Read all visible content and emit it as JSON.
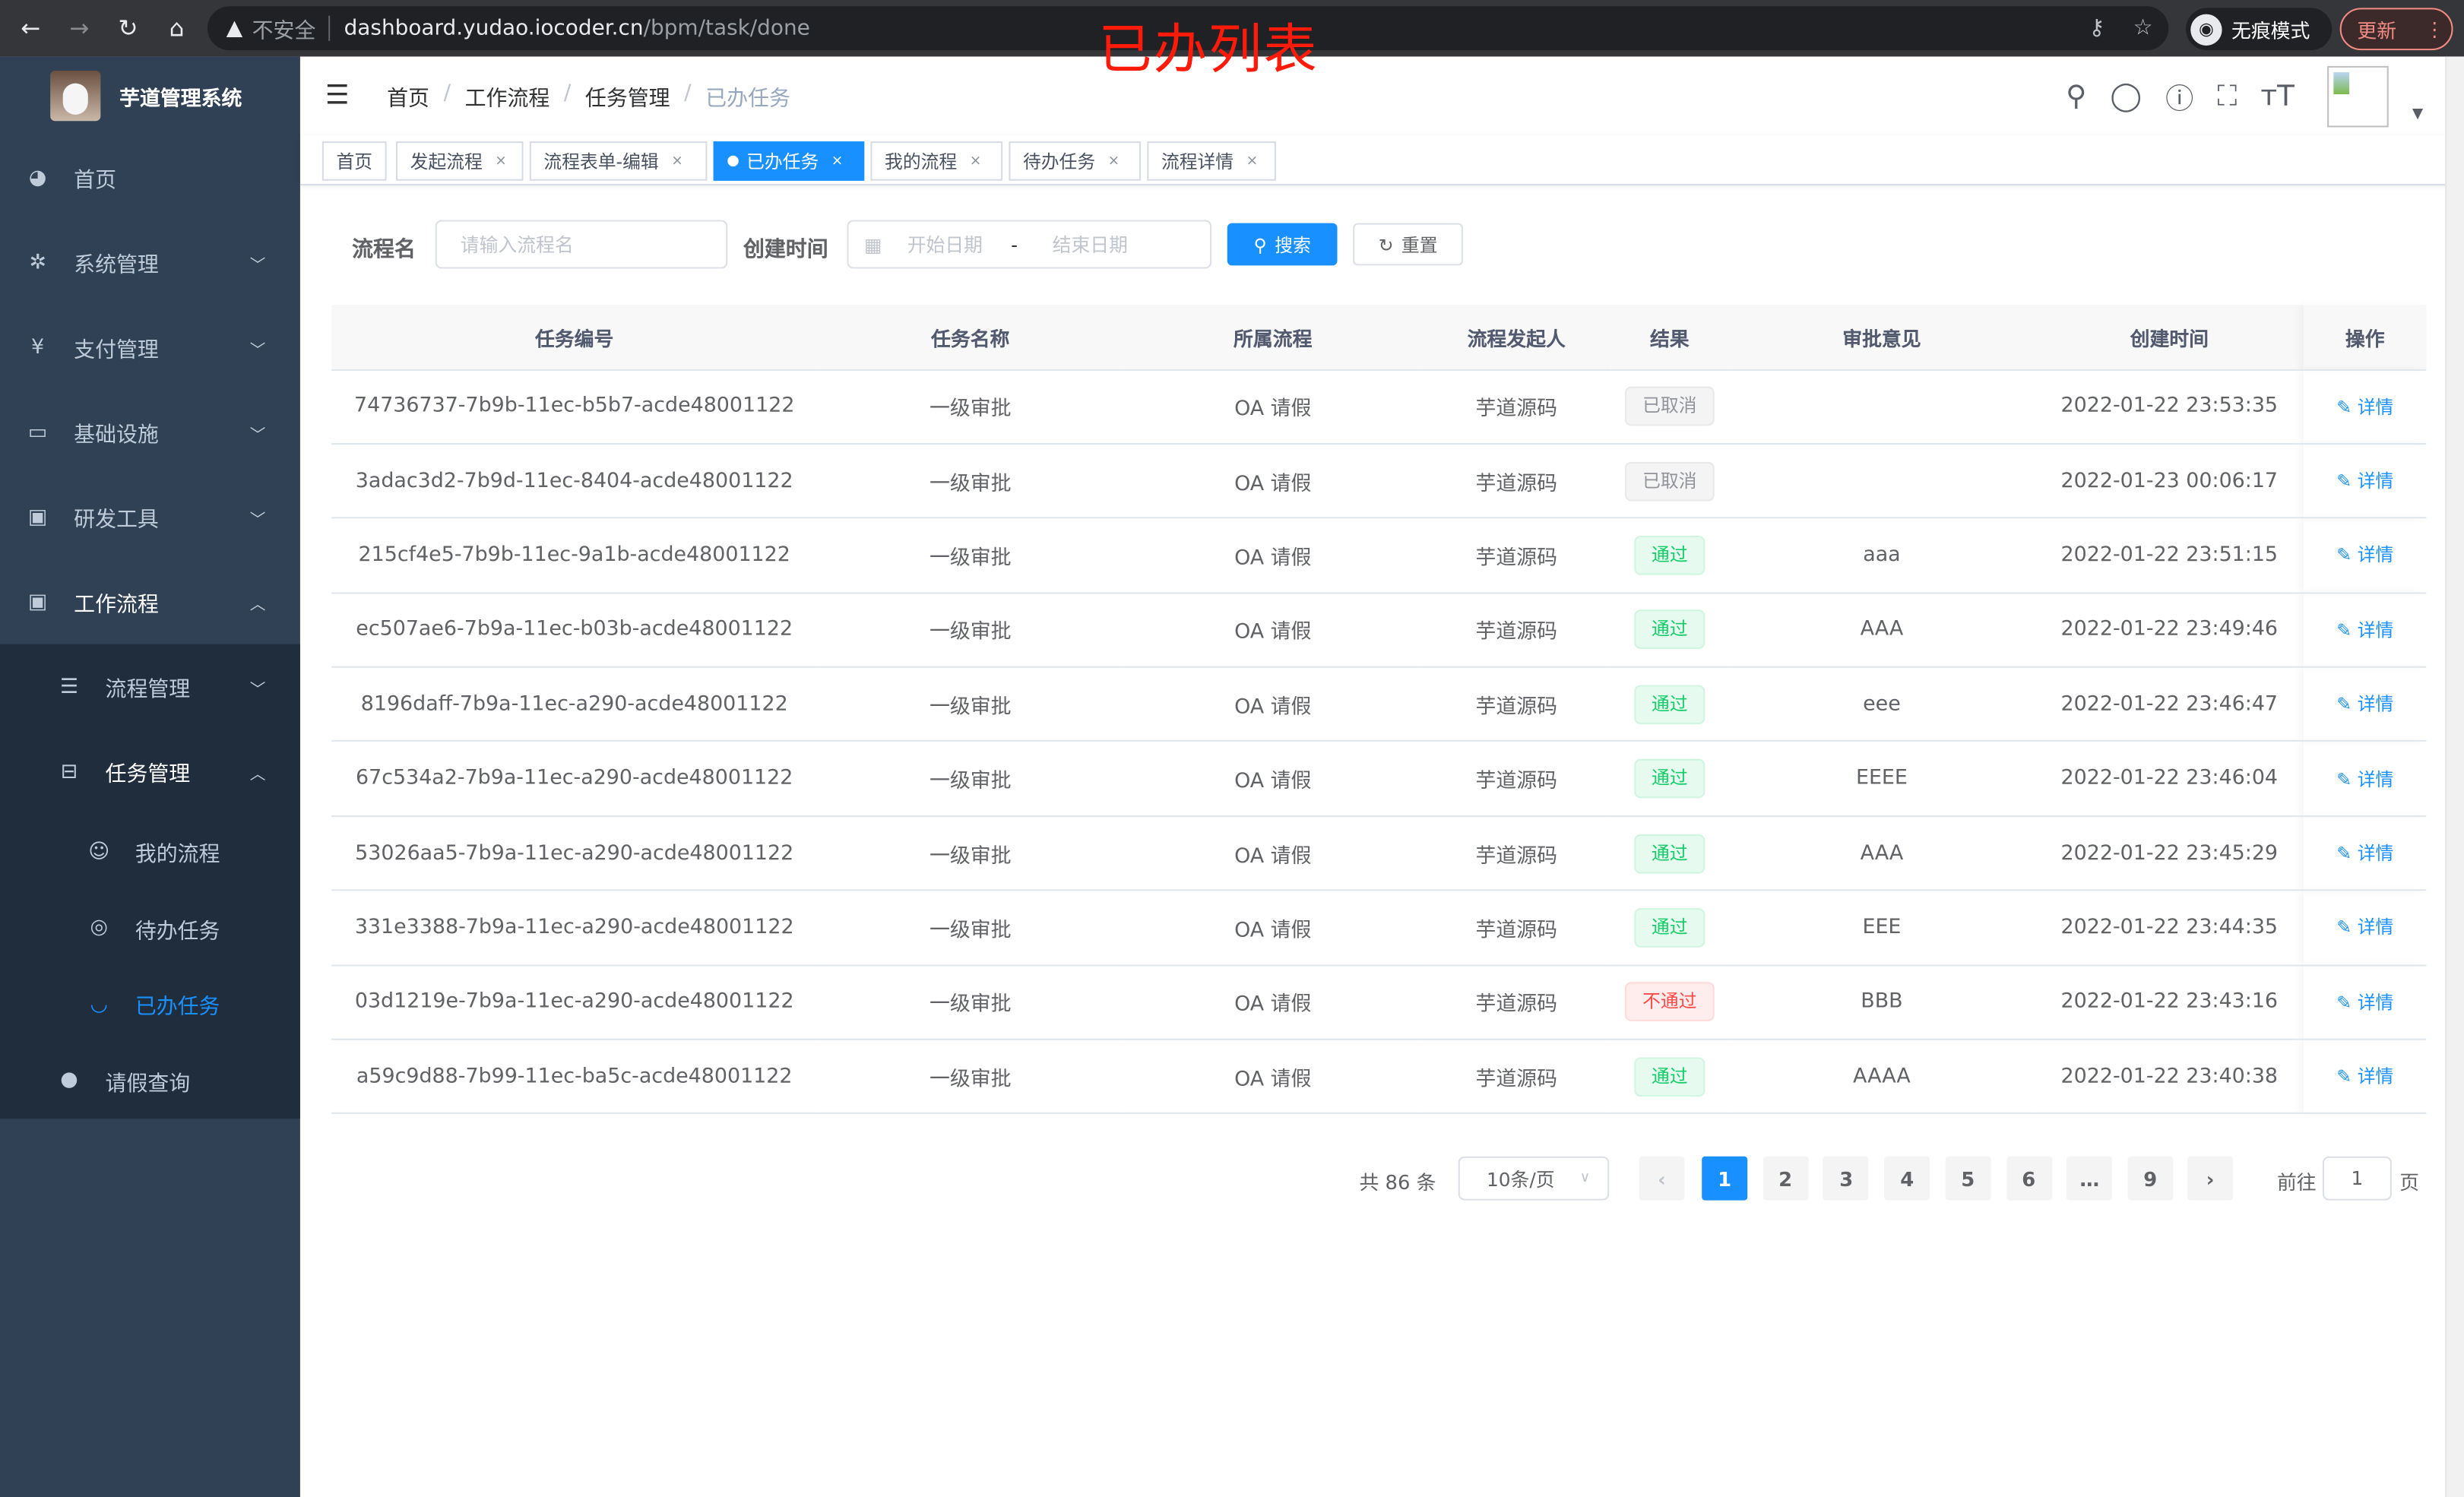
{
  "browser": {
    "security": "不安全",
    "url_host": "dashboard.yudao.iocoder.cn",
    "url_path": "/bpm/task/done",
    "incognito": "无痕模式",
    "update": "更新"
  },
  "overlay_title": "已办列表",
  "sidebar": {
    "title": "芋道管理系统",
    "items": [
      {
        "label": "首页",
        "icon": "dashboard-icon"
      },
      {
        "label": "系统管理",
        "icon": "gear-icon"
      },
      {
        "label": "支付管理",
        "icon": "yen-icon"
      },
      {
        "label": "基础设施",
        "icon": "monitor-icon"
      },
      {
        "label": "研发工具",
        "icon": "toolbox-icon"
      },
      {
        "label": "工作流程",
        "icon": "toolbox-icon"
      }
    ],
    "sub": {
      "process_mgmt": "流程管理",
      "task_mgmt": "任务管理",
      "my_process": "我的流程",
      "todo": "待办任务",
      "done": "已办任务",
      "leave": "请假查询"
    }
  },
  "breadcrumb": [
    "首页",
    "工作流程",
    "任务管理",
    "已办任务"
  ],
  "tags": [
    "首页",
    "发起流程",
    "流程表单-编辑",
    "已办任务",
    "我的流程",
    "待办任务",
    "流程详情"
  ],
  "search": {
    "name_label": "流程名",
    "name_placeholder": "请输入流程名",
    "time_label": "创建时间",
    "start_placeholder": "开始日期",
    "range_sep": "-",
    "end_placeholder": "结束日期",
    "search_btn": "搜索",
    "reset_btn": "重置"
  },
  "table": {
    "columns": [
      "任务编号",
      "任务名称",
      "所属流程",
      "流程发起人",
      "结果",
      "审批意见",
      "创建时间",
      "操作"
    ],
    "rows": [
      [
        "74736737-7b9b-11ec-b5b7-acde48001122",
        "一级审批",
        "OA 请假",
        "芋道源码",
        "已取消",
        "",
        "2022-01-22 23:53:35"
      ],
      [
        "3adac3d2-7b9d-11ec-8404-acde48001122",
        "一级审批",
        "OA 请假",
        "芋道源码",
        "已取消",
        "",
        "2022-01-23 00:06:17"
      ],
      [
        "215cf4e5-7b9b-11ec-9a1b-acde48001122",
        "一级审批",
        "OA 请假",
        "芋道源码",
        "通过",
        "aaa",
        "2022-01-22 23:51:15"
      ],
      [
        "ec507ae6-7b9a-11ec-b03b-acde48001122",
        "一级审批",
        "OA 请假",
        "芋道源码",
        "通过",
        "AAA",
        "2022-01-22 23:49:46"
      ],
      [
        "8196daff-7b9a-11ec-a290-acde48001122",
        "一级审批",
        "OA 请假",
        "芋道源码",
        "通过",
        "eee",
        "2022-01-22 23:46:47"
      ],
      [
        "67c534a2-7b9a-11ec-a290-acde48001122",
        "一级审批",
        "OA 请假",
        "芋道源码",
        "通过",
        "EEEE",
        "2022-01-22 23:46:04"
      ],
      [
        "53026aa5-7b9a-11ec-a290-acde48001122",
        "一级审批",
        "OA 请假",
        "芋道源码",
        "通过",
        "AAA",
        "2022-01-22 23:45:29"
      ],
      [
        "331e3388-7b9a-11ec-a290-acde48001122",
        "一级审批",
        "OA 请假",
        "芋道源码",
        "通过",
        "EEE",
        "2022-01-22 23:44:35"
      ],
      [
        "03d1219e-7b9a-11ec-a290-acde48001122",
        "一级审批",
        "OA 请假",
        "芋道源码",
        "不通过",
        "BBB",
        "2022-01-22 23:43:16"
      ],
      [
        "a59c9d88-7b99-11ec-ba5c-acde48001122",
        "一级审批",
        "OA 请假",
        "芋道源码",
        "通过",
        "AAAA",
        "2022-01-22 23:40:38"
      ]
    ],
    "detail_label": "详情"
  },
  "pagination": {
    "total": "共 86 条",
    "page_size": "10条/页",
    "pages": [
      "1",
      "2",
      "3",
      "4",
      "5",
      "6",
      "…",
      "9"
    ],
    "current": "1",
    "goto_label": "前往",
    "goto_value": "1",
    "page_suffix": "页"
  },
  "colors": {
    "sidebar": "#304156",
    "accent": "#1890ff",
    "success": "#13ce66",
    "danger": "#ff4949"
  }
}
